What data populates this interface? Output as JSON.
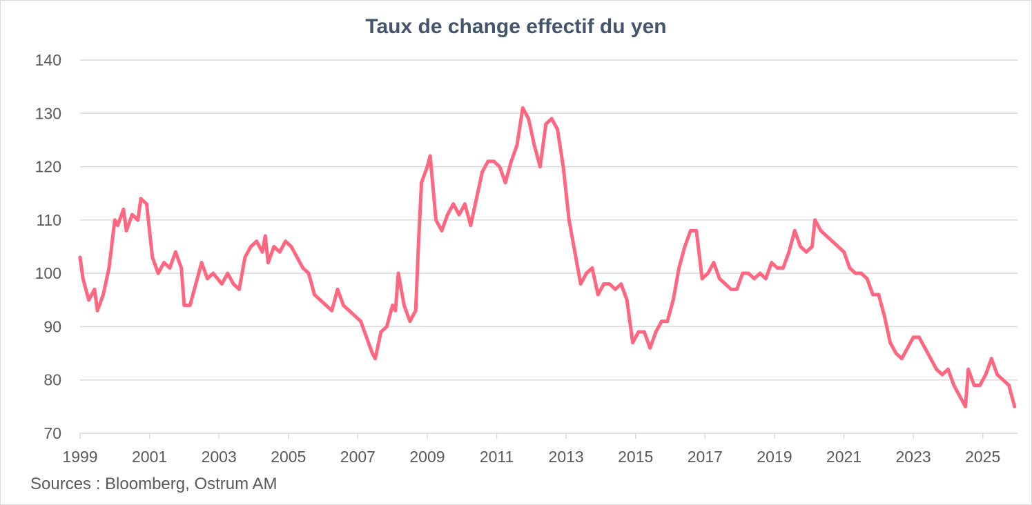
{
  "chart_data": {
    "type": "line",
    "title": "Taux de change effectif du yen",
    "source": "Sources : Bloomberg, Ostrum AM",
    "xlabel": "",
    "ylabel": "",
    "ylim": [
      70,
      140
    ],
    "yticks": [
      "70",
      "80",
      "90",
      "100",
      "110",
      "120",
      "130",
      "140"
    ],
    "xticks": [
      "1999",
      "2001",
      "2003",
      "2005",
      "2007",
      "2009",
      "2011",
      "2013",
      "2015",
      "2017",
      "2019",
      "2021",
      "2023",
      "2025"
    ],
    "grid": "horizontal",
    "legend": "none",
    "line_color": "#ff6680",
    "series": [
      {
        "x": [
          "1999-01",
          "1999-02",
          "1999-04",
          "1999-06",
          "1999-07",
          "1999-09",
          "1999-11",
          "2000-01",
          "2000-02",
          "2000-04",
          "2000-05",
          "2000-07",
          "2000-09",
          "2000-10",
          "2000-12",
          "2001-02",
          "2001-04",
          "2001-06",
          "2001-08",
          "2001-10",
          "2001-12",
          "2002-01",
          "2002-03",
          "2002-05",
          "2002-07",
          "2002-09",
          "2002-11",
          "2003-02",
          "2003-04",
          "2003-06",
          "2003-08",
          "2003-10",
          "2003-12",
          "2004-02",
          "2004-04",
          "2004-05",
          "2004-06",
          "2004-08",
          "2004-10",
          "2004-12",
          "2005-02",
          "2005-04",
          "2005-06",
          "2005-08",
          "2005-10",
          "2005-12",
          "2006-02",
          "2006-04",
          "2006-06",
          "2006-08",
          "2006-10",
          "2006-12",
          "2007-02",
          "2007-04",
          "2007-06",
          "2007-07",
          "2007-09",
          "2007-11",
          "2008-01",
          "2008-02",
          "2008-03",
          "2008-05",
          "2008-07",
          "2008-09",
          "2008-10",
          "2008-11",
          "2009-01",
          "2009-02",
          "2009-04",
          "2009-06",
          "2009-08",
          "2009-10",
          "2009-12",
          "2010-02",
          "2010-04",
          "2010-06",
          "2010-08",
          "2010-10",
          "2010-12",
          "2011-02",
          "2011-04",
          "2011-06",
          "2011-08",
          "2011-10",
          "2011-12",
          "2012-02",
          "2012-04",
          "2012-06",
          "2012-08",
          "2012-10",
          "2012-12",
          "2013-02",
          "2013-04",
          "2013-06",
          "2013-08",
          "2013-10",
          "2013-12",
          "2014-02",
          "2014-04",
          "2014-06",
          "2014-08",
          "2014-10",
          "2014-12",
          "2015-02",
          "2015-04",
          "2015-06",
          "2015-08",
          "2015-10",
          "2015-12",
          "2016-02",
          "2016-04",
          "2016-06",
          "2016-08",
          "2016-10",
          "2016-12",
          "2017-02",
          "2017-04",
          "2017-06",
          "2017-08",
          "2017-10",
          "2017-12",
          "2018-02",
          "2018-04",
          "2018-06",
          "2018-08",
          "2018-10",
          "2018-12",
          "2019-02",
          "2019-04",
          "2019-06",
          "2019-08",
          "2019-10",
          "2019-12",
          "2020-02",
          "2020-03",
          "2020-05",
          "2020-07",
          "2020-09",
          "2020-11",
          "2021-01",
          "2021-03",
          "2021-05",
          "2021-07",
          "2021-09",
          "2021-11",
          "2022-01",
          "2022-03",
          "2022-05",
          "2022-07",
          "2022-09",
          "2022-11",
          "2023-01",
          "2023-03",
          "2023-05",
          "2023-07",
          "2023-09",
          "2023-11",
          "2024-01",
          "2024-03",
          "2024-05",
          "2024-07",
          "2024-08",
          "2024-10",
          "2024-12",
          "2025-02",
          "2025-04",
          "2025-06",
          "2025-08",
          "2025-10",
          "2025-12"
        ],
        "y": [
          103,
          99,
          95,
          97,
          93,
          96,
          101,
          110,
          109,
          112,
          108,
          111,
          110,
          114,
          113,
          103,
          100,
          102,
          101,
          104,
          101,
          94,
          94,
          98,
          102,
          99,
          100,
          98,
          100,
          98,
          97,
          103,
          105,
          106,
          104,
          107,
          102,
          105,
          104,
          106,
          105,
          103,
          101,
          100,
          96,
          95,
          94,
          93,
          97,
          94,
          93,
          92,
          91,
          88,
          85,
          84,
          89,
          90,
          94,
          93,
          100,
          94,
          91,
          93,
          106,
          117,
          120,
          122,
          110,
          108,
          111,
          113,
          111,
          113,
          109,
          114,
          119,
          121,
          121,
          120,
          117,
          121,
          124,
          131,
          129,
          124,
          120,
          128,
          129,
          127,
          120,
          110,
          104,
          98,
          100,
          101,
          96,
          98,
          98,
          97,
          98,
          95,
          87,
          89,
          89,
          86,
          89,
          91,
          91,
          95,
          101,
          105,
          108,
          108,
          99,
          100,
          102,
          99,
          98,
          97,
          97,
          100,
          100,
          99,
          100,
          99,
          102,
          101,
          101,
          104,
          108,
          105,
          104,
          105,
          110,
          108,
          107,
          106,
          105,
          104,
          101,
          100,
          100,
          99,
          96,
          96,
          92,
          87,
          85,
          84,
          86,
          88,
          88,
          86,
          84,
          82,
          81,
          82,
          79,
          77,
          75,
          82,
          79,
          79,
          81,
          84,
          81,
          80,
          79,
          75
        ]
      }
    ]
  }
}
